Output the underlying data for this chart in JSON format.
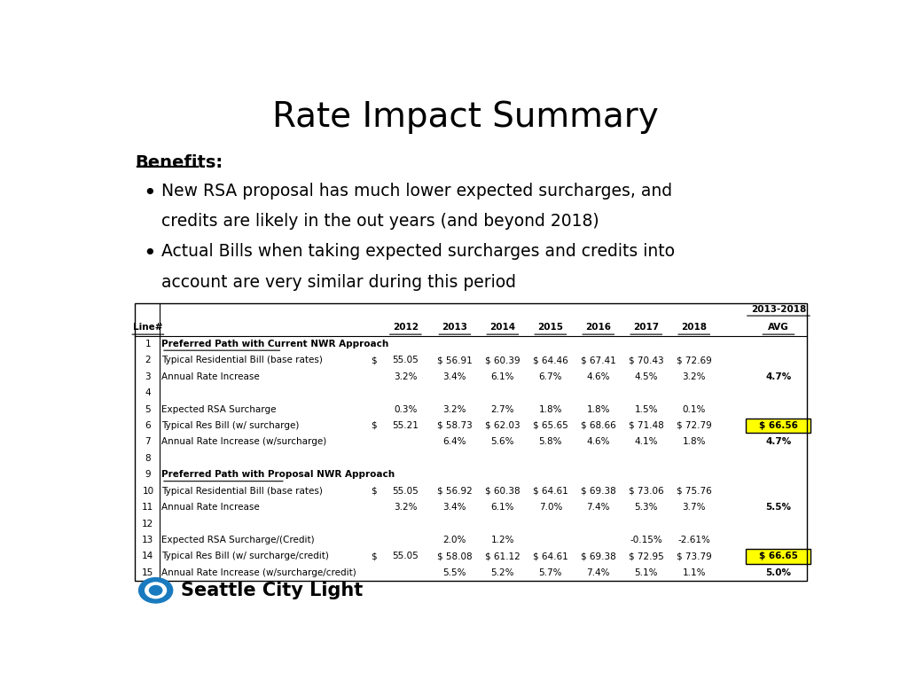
{
  "title": "Rate Impact Summary",
  "benefits_header": "Benefits:",
  "bullet1_line1": "New RSA proposal has much lower expected surcharges, and",
  "bullet1_line2": "credits are likely in the out years (and beyond 2018)",
  "bullet2_line1": "Actual Bills when taking expected surcharges and credits into",
  "bullet2_line2": "account are very similar during this period",
  "table": {
    "rows": [
      {
        "line": "1",
        "label": "Preferred Path with Current NWR Approach",
        "bold_underline": true,
        "dollar": "",
        "vals": [
          "",
          "",
          "",
          "",
          "",
          "",
          "",
          ""
        ]
      },
      {
        "line": "2",
        "label": "Typical Residential Bill (base rates)",
        "bold_underline": false,
        "dollar": "$",
        "vals": [
          "55.05",
          "$ 56.91",
          "$ 60.39",
          "$ 64.46",
          "$ 67.41",
          "$ 70.43",
          "$ 72.69",
          ""
        ]
      },
      {
        "line": "3",
        "label": "Annual Rate Increase",
        "bold_underline": false,
        "dollar": "",
        "vals": [
          "3.2%",
          "3.4%",
          "6.1%",
          "6.7%",
          "4.6%",
          "4.5%",
          "3.2%",
          "4.7%"
        ],
        "bold_avg": true
      },
      {
        "line": "4",
        "label": "",
        "bold_underline": false,
        "dollar": "",
        "vals": [
          "",
          "",
          "",
          "",
          "",
          "",
          "",
          ""
        ]
      },
      {
        "line": "5",
        "label": "Expected RSA Surcharge",
        "bold_underline": false,
        "dollar": "",
        "vals": [
          "0.3%",
          "3.2%",
          "2.7%",
          "1.8%",
          "1.8%",
          "1.5%",
          "0.1%",
          ""
        ]
      },
      {
        "line": "6",
        "label": "Typical Res Bill (w/ surcharge)",
        "bold_underline": false,
        "dollar": "$",
        "vals": [
          "55.21",
          "$ 58.73",
          "$ 62.03",
          "$ 65.65",
          "$ 68.66",
          "$ 71.48",
          "$ 72.79",
          "$ 66.56"
        ],
        "highlight_last": true
      },
      {
        "line": "7",
        "label": "Annual Rate Increase (w/surcharge)",
        "bold_underline": false,
        "dollar": "",
        "vals": [
          "",
          "6.4%",
          "5.6%",
          "5.8%",
          "4.6%",
          "4.1%",
          "1.8%",
          "4.7%"
        ],
        "bold_avg": true
      },
      {
        "line": "8",
        "label": "",
        "bold_underline": false,
        "dollar": "",
        "vals": [
          "",
          "",
          "",
          "",
          "",
          "",
          "",
          ""
        ]
      },
      {
        "line": "9",
        "label": "Preferred Path with Proposal NWR Approach",
        "bold_underline": true,
        "dollar": "",
        "vals": [
          "",
          "",
          "",
          "",
          "",
          "",
          "",
          ""
        ]
      },
      {
        "line": "10",
        "label": "Typical Residential Bill (base rates)",
        "bold_underline": false,
        "dollar": "$",
        "vals": [
          "55.05",
          "$ 56.92",
          "$ 60.38",
          "$ 64.61",
          "$ 69.38",
          "$ 73.06",
          "$ 75.76",
          ""
        ]
      },
      {
        "line": "11",
        "label": "Annual Rate Increase",
        "bold_underline": false,
        "dollar": "",
        "vals": [
          "3.2%",
          "3.4%",
          "6.1%",
          "7.0%",
          "7.4%",
          "5.3%",
          "3.7%",
          "5.5%"
        ],
        "bold_avg": true
      },
      {
        "line": "12",
        "label": "",
        "bold_underline": false,
        "dollar": "",
        "vals": [
          "",
          "",
          "",
          "",
          "",
          "",
          "",
          ""
        ]
      },
      {
        "line": "13",
        "label": "Expected RSA Surcharge/(Credit)",
        "bold_underline": false,
        "dollar": "",
        "vals": [
          "",
          "2.0%",
          "1.2%",
          "",
          "",
          "-0.15%",
          "-2.61%",
          ""
        ]
      },
      {
        "line": "14",
        "label": "Typical Res Bill (w/ surcharge/credit)",
        "bold_underline": false,
        "dollar": "$",
        "vals": [
          "55.05",
          "$ 58.08",
          "$ 61.12",
          "$ 64.61",
          "$ 69.38",
          "$ 72.95",
          "$ 73.79",
          "$ 66.65"
        ],
        "highlight_last": true
      },
      {
        "line": "15",
        "label": "Annual Rate Increase (w/surcharge/credit)",
        "bold_underline": false,
        "dollar": "",
        "vals": [
          "",
          "5.5%",
          "5.2%",
          "5.7%",
          "7.4%",
          "5.1%",
          "1.1%",
          "5.0%"
        ],
        "bold_avg": true
      }
    ]
  },
  "highlight_color": "#FFFF00",
  "background_color": "#FFFFFF",
  "logo_text": "Seattle City Light"
}
